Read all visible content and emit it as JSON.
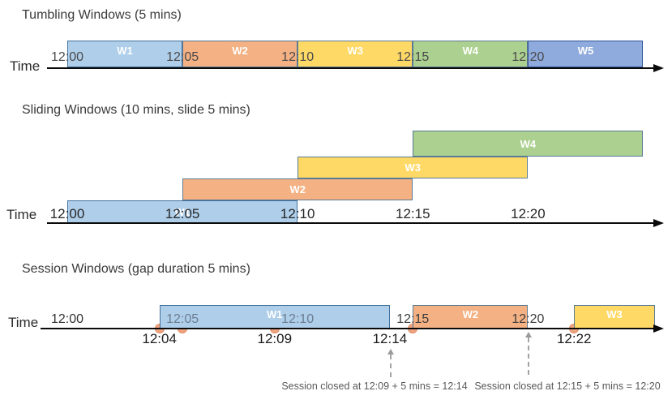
{
  "palette": {
    "blue_light": {
      "fill": "#AFCEEA",
      "border": "#41719C"
    },
    "orange": {
      "fill": "#F4B183",
      "border": "#5B7B95"
    },
    "yellow": {
      "fill": "#FFD966",
      "border": "#5B7B95"
    },
    "green": {
      "fill": "#ACD08F",
      "border": "#5B7B95"
    },
    "blue": {
      "fill": "#8FAADC",
      "border": "#2F5597"
    },
    "axis": "#0a0a0a",
    "event_dot_fill": "#F0A482",
    "event_dot_border": "#E08A5E",
    "annotation_text": "#595959"
  },
  "sections": {
    "tumbling": {
      "title": "Tumbling Windows (5 mins)",
      "axis_label": "Time",
      "ticks": [
        {
          "label": "12:00",
          "time_min": 0
        },
        {
          "label": "12:05",
          "time_min": 5
        },
        {
          "label": "12:10",
          "time_min": 10
        },
        {
          "label": "12:15",
          "time_min": 15
        },
        {
          "label": "12:20",
          "time_min": 20
        }
      ],
      "windows": [
        {
          "label": "W1",
          "start_min": 0,
          "end_min": 5,
          "color": "blue_light"
        },
        {
          "label": "W2",
          "start_min": 5,
          "end_min": 10,
          "color": "orange"
        },
        {
          "label": "W3",
          "start_min": 10,
          "end_min": 15,
          "color": "yellow"
        },
        {
          "label": "W4",
          "start_min": 15,
          "end_min": 20,
          "color": "green"
        },
        {
          "label": "W5",
          "start_min": 20,
          "end_min": 25,
          "color": "blue"
        }
      ]
    },
    "sliding": {
      "title": "Sliding Windows (10 mins, slide 5 mins)",
      "axis_label": "Time",
      "ticks": [
        {
          "label": "12:00",
          "time_min": 0
        },
        {
          "label": "12:05",
          "time_min": 5
        },
        {
          "label": "12:10",
          "time_min": 10
        },
        {
          "label": "12:15",
          "time_min": 15
        },
        {
          "label": "12:20",
          "time_min": 20
        }
      ],
      "windows": [
        {
          "label": "W1",
          "start_min": 0,
          "end_min": 10,
          "row": 0,
          "color": "blue_light"
        },
        {
          "label": "W2",
          "start_min": 5,
          "end_min": 15,
          "row": 1,
          "color": "orange"
        },
        {
          "label": "W3",
          "start_min": 10,
          "end_min": 20,
          "row": 2,
          "color": "yellow"
        },
        {
          "label": "W4",
          "start_min": 15,
          "end_min": 25,
          "row": 3,
          "color": "green"
        }
      ]
    },
    "session": {
      "title": "Session Windows (gap duration 5 mins)",
      "axis_label": "Time",
      "ticks": [
        {
          "label": "12:00",
          "time_min": 0
        },
        {
          "label": "12:05",
          "time_min": 5
        },
        {
          "label": "12:10",
          "time_min": 10
        },
        {
          "label": "12:15",
          "time_min": 15
        },
        {
          "label": "12:20",
          "time_min": 20
        }
      ],
      "windows": [
        {
          "label": "W1",
          "start_min": 4,
          "end_min": 14,
          "color": "blue_light"
        },
        {
          "label": "W2",
          "start_min": 15,
          "end_min": 20,
          "color": "orange"
        },
        {
          "label": "W3",
          "start_min": 22,
          "end_min": 25.5,
          "color": "yellow"
        }
      ],
      "events": [
        {
          "time_min": 4
        },
        {
          "time_min": 5
        },
        {
          "time_min": 9
        },
        {
          "time_min": 15
        },
        {
          "time_min": 22
        }
      ],
      "event_labels": [
        {
          "label": "12:04",
          "time_min": 4
        },
        {
          "label": "12:09",
          "time_min": 9
        },
        {
          "label": "12:14",
          "time_min": 14
        },
        {
          "label": "12:22",
          "time_min": 22
        }
      ],
      "annotations": [
        {
          "text": "Session closed at 12:09 + 5 mins = 12:14",
          "points_to_min": 14
        },
        {
          "text": "Session closed at 12:15 + 5 mins = 12:20",
          "points_to_min": 20
        }
      ]
    }
  }
}
